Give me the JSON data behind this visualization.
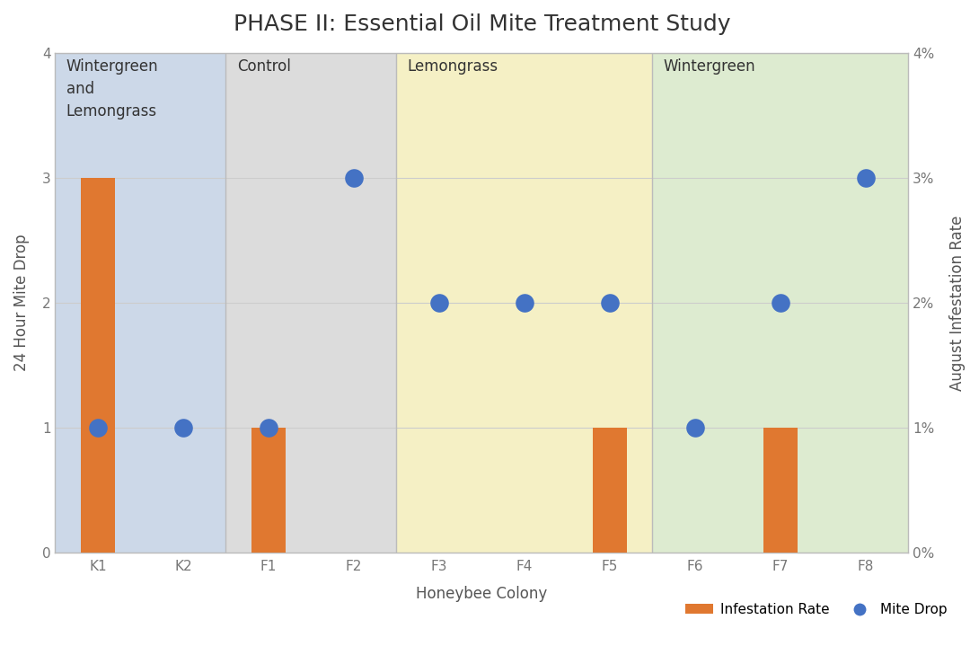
{
  "title": "PHASE II: Essential Oil Mite Treatment Study",
  "xlabel": "Honeybee Colony",
  "ylabel_left": "24 Hour Mite Drop",
  "ylabel_right": "August Infestation Rate",
  "colonies": [
    "K1",
    "K2",
    "F1",
    "F2",
    "F3",
    "F4",
    "F5",
    "F6",
    "F7",
    "F8"
  ],
  "mite_drop": [
    1,
    1,
    1,
    3,
    2,
    2,
    2,
    1,
    2,
    3
  ],
  "bar_heights": [
    3,
    null,
    1,
    null,
    null,
    null,
    1,
    null,
    1,
    null
  ],
  "groups": [
    {
      "label": "Wintergreen\nand\nLemongrass",
      "start": 0,
      "end": 1,
      "bg_color": "#ccd8e8"
    },
    {
      "label": "Control",
      "start": 2,
      "end": 3,
      "bg_color": "#dcdcdc"
    },
    {
      "label": "Lemongrass",
      "start": 4,
      "end": 6,
      "bg_color": "#f5f0c5"
    },
    {
      "label": "Wintergreen",
      "start": 7,
      "end": 9,
      "bg_color": "#ddebd0"
    }
  ],
  "group_dividers": [
    1.5,
    3.5,
    6.5
  ],
  "bar_color": "#e07830",
  "dot_color": "#4472c4",
  "dot_size": 220,
  "bar_width": 0.4,
  "ylim_left": [
    0,
    4
  ],
  "yticks_left": [
    0,
    1,
    2,
    3,
    4
  ],
  "yticks_right": [
    0.0,
    0.01,
    0.02,
    0.03,
    0.04
  ],
  "ytick_labels_right": [
    "0%",
    "1%",
    "2%",
    "3%",
    "4%"
  ],
  "fig_bg_color": "#ffffff",
  "plot_bg_color": "#ffffff",
  "title_fontsize": 18,
  "title_color": "#333333",
  "axis_label_fontsize": 12,
  "axis_label_color": "#555555",
  "tick_fontsize": 11,
  "tick_color": "#777777",
  "group_label_fontsize": 12,
  "group_label_color": "#333333",
  "grid_color": "#cccccc",
  "divider_color": "#bbbbbb",
  "spine_color": "#bbbbbb",
  "legend_dot_label": "Mite Drop",
  "legend_bar_label": "Infestation Rate",
  "legend_fontsize": 11
}
